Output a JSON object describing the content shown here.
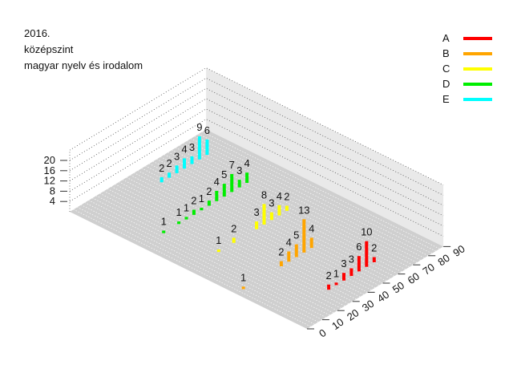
{
  "title_lines": [
    "2016.",
    "középszint",
    "magyar nyelv és irodalom"
  ],
  "chart_data": {
    "type": "bar",
    "projection": "3d",
    "title": "2016. középszint magyar nyelv és irodalom",
    "z_axis": {
      "ticks": [
        4,
        8,
        12,
        16,
        20
      ],
      "range": [
        0,
        24
      ]
    },
    "x_axis": {
      "ticks": [
        0,
        10,
        20,
        30,
        40,
        50,
        60,
        70,
        80,
        90
      ],
      "range": [
        0,
        90
      ]
    },
    "series": [
      {
        "name": "A",
        "color": "#ff0000",
        "points": [
          {
            "x": 30,
            "v": 2
          },
          {
            "x": 35,
            "v": 1
          },
          {
            "x": 40,
            "v": 3
          },
          {
            "x": 45,
            "v": 3
          },
          {
            "x": 50,
            "v": 6
          },
          {
            "x": 55,
            "v": 10
          },
          {
            "x": 60,
            "v": 2
          }
        ]
      },
      {
        "name": "B",
        "color": "#ffa500",
        "points": [
          {
            "x": 5,
            "v": 1
          },
          {
            "x": 30,
            "v": 2
          },
          {
            "x": 35,
            "v": 4
          },
          {
            "x": 40,
            "v": 5
          },
          {
            "x": 45,
            "v": 13
          },
          {
            "x": 50,
            "v": 4
          }
        ]
      },
      {
        "name": "C",
        "color": "#ffff00",
        "points": [
          {
            "x": 20,
            "v": 1
          },
          {
            "x": 30,
            "v": 2
          },
          {
            "x": 45,
            "v": 3
          },
          {
            "x": 50,
            "v": 8
          },
          {
            "x": 55,
            "v": 3
          },
          {
            "x": 60,
            "v": 4
          },
          {
            "x": 65,
            "v": 2
          }
        ]
      },
      {
        "name": "D",
        "color": "#00ee00",
        "points": [
          {
            "x": 15,
            "v": 1
          },
          {
            "x": 25,
            "v": 1
          },
          {
            "x": 30,
            "v": 1
          },
          {
            "x": 35,
            "v": 2
          },
          {
            "x": 40,
            "v": 1
          },
          {
            "x": 45,
            "v": 2
          },
          {
            "x": 50,
            "v": 4
          },
          {
            "x": 55,
            "v": 5
          },
          {
            "x": 60,
            "v": 7
          },
          {
            "x": 65,
            "v": 3
          },
          {
            "x": 70,
            "v": 4
          }
        ]
      },
      {
        "name": "E",
        "color": "#00ffff",
        "points": [
          {
            "x": 45,
            "v": 2
          },
          {
            "x": 50,
            "v": 2
          },
          {
            "x": 55,
            "v": 3
          },
          {
            "x": 60,
            "v": 4
          },
          {
            "x": 65,
            "v": 3
          },
          {
            "x": 70,
            "v": 9
          },
          {
            "x": 75,
            "v": 6
          }
        ]
      }
    ]
  }
}
